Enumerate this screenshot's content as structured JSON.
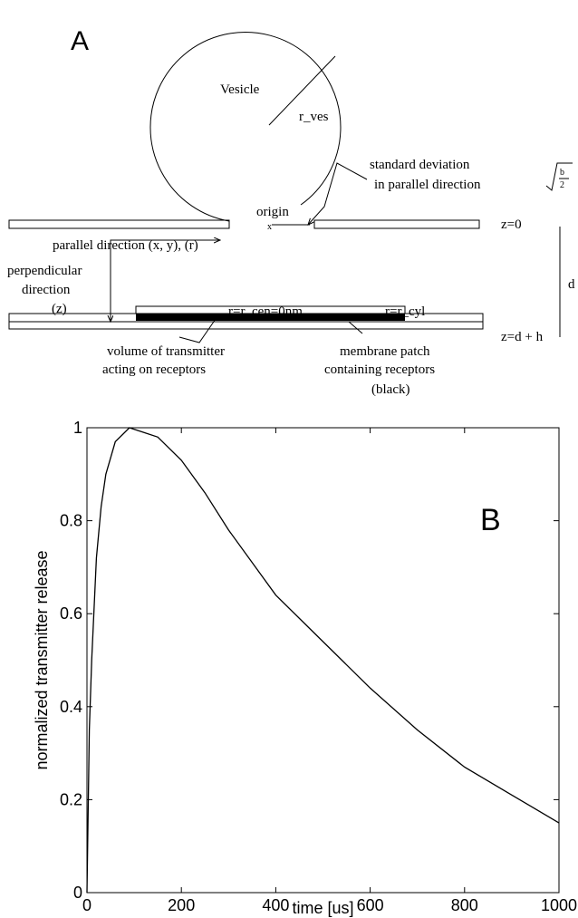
{
  "panel_a": {
    "label": "A",
    "vesicle": "Vesicle",
    "radius": "r_ves",
    "std_line1": "standard deviation",
    "std_line2": "in parallel direction",
    "sqrt_num": "b",
    "sqrt_den": "2",
    "origin": "origin",
    "z0": "z=0",
    "parallel": "parallel direction (x, y), (r)",
    "perp_line1": "perpendicular",
    "perp_line2": "direction",
    "perp_line3": "(z)",
    "d": "d",
    "r_cen": "r=r_cen=0nm",
    "r_cyl": "r=r_cyl",
    "zdh": "z=d + h",
    "volume_line1": "volume of transmitter",
    "volume_line2": "acting on receptors",
    "patch_line1": "membrane patch",
    "patch_line2": "containing receptors",
    "patch_line3": "(black)"
  },
  "chart_data": {
    "type": "line",
    "panel_label": "B",
    "xlabel": "time [us]",
    "ylabel": "normalized transmitter release",
    "x": [
      0,
      5,
      10,
      20,
      30,
      40,
      60,
      90,
      120,
      150,
      200,
      250,
      300,
      400,
      500,
      600,
      700,
      800,
      900,
      1000
    ],
    "values": [
      0,
      0.35,
      0.5,
      0.72,
      0.83,
      0.9,
      0.97,
      1,
      0.99,
      0.98,
      0.93,
      0.86,
      0.78,
      0.64,
      0.54,
      0.44,
      0.35,
      0.27,
      0.21,
      0.15
    ],
    "color": "#000000",
    "xlim": [
      0,
      1000
    ],
    "ylim": [
      0,
      1
    ],
    "xticks": [
      0,
      200,
      400,
      600,
      800,
      1000
    ],
    "yticks": [
      0,
      0.2,
      0.4,
      0.6,
      0.8,
      1
    ]
  }
}
